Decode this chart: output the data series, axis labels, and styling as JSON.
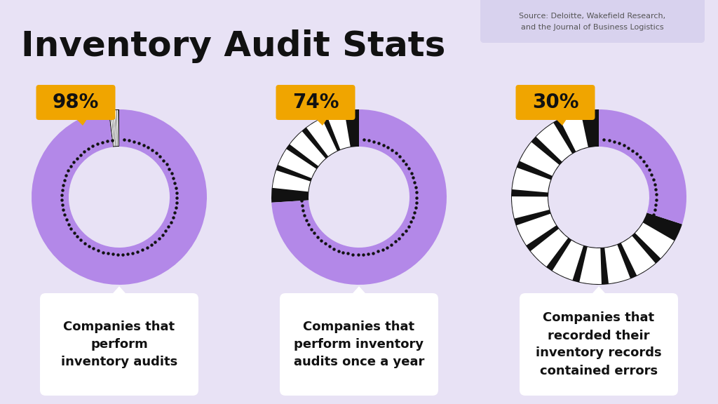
{
  "title": "Inventory Audit Stats",
  "source_line1": "Source: Deloitte, Wakefield Research,",
  "source_line2": "and the Journal of Business Logistics",
  "background_color": "#e8e2f5",
  "purple_color": "#b388e8",
  "black_color": "#111111",
  "yellow_color": "#f0a500",
  "white_color": "#ffffff",
  "source_box_color": "#d8d2ee",
  "charts": [
    {
      "pct": 98,
      "label": "98%",
      "description": "Companies that\nperform\ninventory audits"
    },
    {
      "pct": 74,
      "label": "74%",
      "description": "Companies that\nperform inventory\naudits once a year"
    },
    {
      "pct": 30,
      "label": "30%",
      "description": "Companies that\nrecorded their\ninventory records\ncontained errors"
    }
  ]
}
